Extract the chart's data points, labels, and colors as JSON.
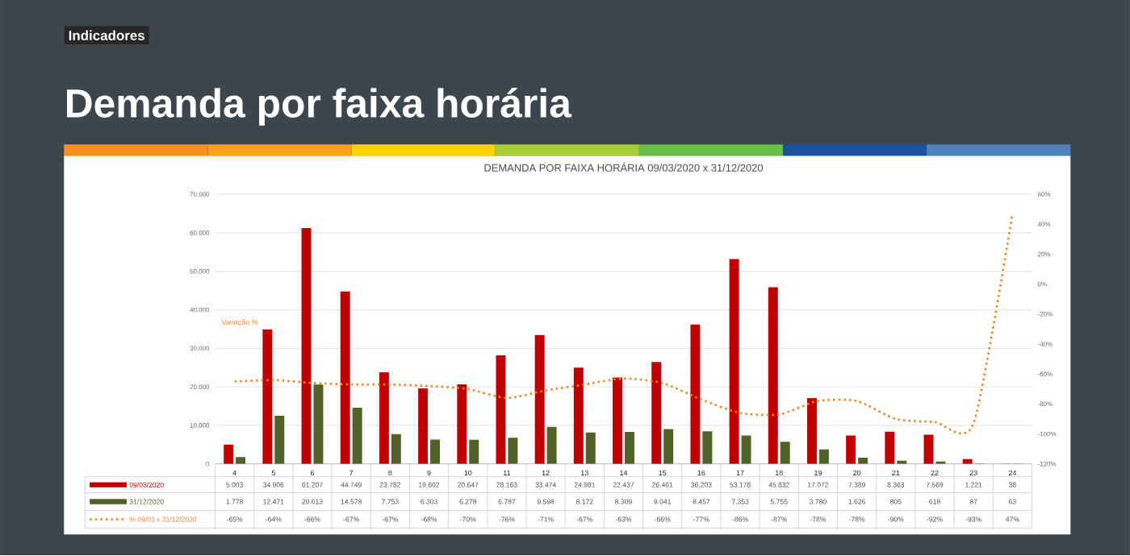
{
  "chart_data": {
    "type": "bar",
    "title": "Demanda por faixa horária",
    "subtitle": "DEMANDA POR FAIXA HORÁRIA 09/03/2020 x 31/12/2020",
    "annotations": [
      "Indicadores",
      "Variação %"
    ],
    "categories": [
      "4",
      "5",
      "6",
      "7",
      "8",
      "9",
      "10",
      "11",
      "12",
      "13",
      "14",
      "15",
      "16",
      "17",
      "18",
      "19",
      "20",
      "21",
      "22",
      "23",
      "24"
    ],
    "series": [
      {
        "name": "09/03/2020",
        "color": "#c00000",
        "values": [
          5003,
          34906,
          61207,
          44749,
          23782,
          19602,
          20647,
          28163,
          33474,
          24981,
          22437,
          26461,
          36203,
          53178,
          45832,
          17072,
          7389,
          8363,
          7569,
          1221,
          38
        ],
        "value_labels": [
          "5.003",
          "34.906",
          "61.207",
          "44.749",
          "23.782",
          "19.602",
          "20.647",
          "28.163",
          "33.474",
          "24.981",
          "22.437",
          "26.461",
          "36.203",
          "53.178",
          "45.832",
          "17.072",
          "7.389",
          "8.363",
          "7.569",
          "1.221",
          "38"
        ]
      },
      {
        "name": "31/12/2020",
        "color": "#4f6228",
        "values": [
          1778,
          12471,
          20613,
          14578,
          7753,
          6303,
          6278,
          6787,
          9598,
          8172,
          8309,
          9041,
          8457,
          7353,
          5755,
          3780,
          1626,
          805,
          618,
          87,
          63
        ],
        "value_labels": [
          "1.778",
          "12.471",
          "20.613",
          "14.578",
          "7.753",
          "6.303",
          "6.278",
          "6.787",
          "9.598",
          "8.172",
          "8.309",
          "9.041",
          "8.457",
          "7.353",
          "5.755",
          "3.780",
          "1.626",
          "805",
          "618",
          "87",
          "63"
        ]
      },
      {
        "name": "% 09/03 x 31/12/2020",
        "type": "line",
        "axis": "y2",
        "line_style": "dotted",
        "color": "#f58220",
        "values": [
          -65,
          -64,
          -66,
          -67,
          -67,
          -68,
          -70,
          -76,
          -71,
          -67,
          -63,
          -66,
          -77,
          -86,
          -87,
          -78,
          -78,
          -90,
          -92,
          -93,
          47
        ],
        "value_labels": [
          "-65%",
          "-64%",
          "-66%",
          "-67%",
          "-67%",
          "-68%",
          "-70%",
          "-76%",
          "-71%",
          "-67%",
          "-63%",
          "-66%",
          "-77%",
          "-86%",
          "-87%",
          "-78%",
          "-78%",
          "-90%",
          "-92%",
          "-93%",
          "47%"
        ]
      }
    ],
    "ylim": [
      0,
      70000
    ],
    "yticks": [
      0,
      {
        "value": 10000,
        "label": "10.000"
      },
      {
        "value": 20000,
        "label": "20.000"
      },
      {
        "value": 30000,
        "label": "30.000"
      },
      {
        "value": 40000,
        "label": "40.000"
      },
      {
        "value": 50000,
        "label": "50.000"
      },
      {
        "value": 60000,
        "label": "60.000"
      },
      {
        "value": 70000,
        "label": "70.000"
      }
    ],
    "y2lim": [
      -120,
      60
    ],
    "y2ticks": [
      {
        "value": -120,
        "label": "-120%"
      },
      {
        "value": -100,
        "label": "-100%"
      },
      {
        "value": -80,
        "label": "-80%"
      },
      {
        "value": -60,
        "label": "-60%"
      },
      {
        "value": -40,
        "label": "-40%"
      },
      {
        "value": -20,
        "label": "-20%"
      },
      {
        "value": 0,
        "label": "0%"
      },
      {
        "value": 20,
        "label": "20%"
      },
      {
        "value": 40,
        "label": "40%"
      },
      {
        "value": 60,
        "label": "60%"
      }
    ],
    "grid": "y",
    "legend": "bottom"
  }
}
